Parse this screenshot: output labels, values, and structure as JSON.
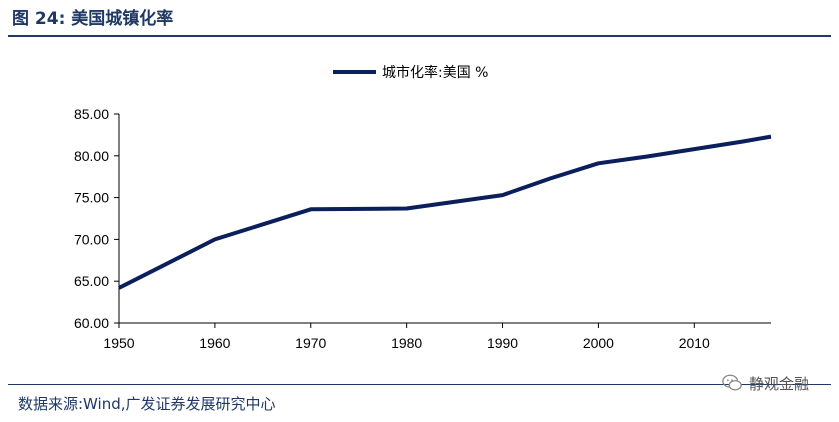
{
  "figure": {
    "title": "图 24:  美国城镇化率",
    "source": "数据来源:Wind,广发证券发展研究中心",
    "watermark": "静观金融"
  },
  "colors": {
    "series": "#0b1f5c",
    "title": "#1f3864",
    "axis": "#000000"
  },
  "chart_data": {
    "type": "line",
    "title": "",
    "xlabel": "",
    "ylabel": "",
    "legend_position": "top-center",
    "grid": false,
    "xlim": [
      1950,
      2018
    ],
    "ylim": [
      60,
      85
    ],
    "x_ticks": [
      1950,
      1960,
      1970,
      1980,
      1990,
      2000,
      2010
    ],
    "y_ticks": [
      "60.00",
      "65.00",
      "70.00",
      "75.00",
      "80.00",
      "85.00"
    ],
    "series": [
      {
        "name": "城市化率:美国 %",
        "x": [
          1950,
          1960,
          1970,
          1980,
          1990,
          1995,
          2000,
          2005,
          2010,
          2015,
          2018
        ],
        "values": [
          64.2,
          70.0,
          73.6,
          73.7,
          75.3,
          77.3,
          79.1,
          79.9,
          80.8,
          81.7,
          82.3
        ]
      }
    ]
  }
}
